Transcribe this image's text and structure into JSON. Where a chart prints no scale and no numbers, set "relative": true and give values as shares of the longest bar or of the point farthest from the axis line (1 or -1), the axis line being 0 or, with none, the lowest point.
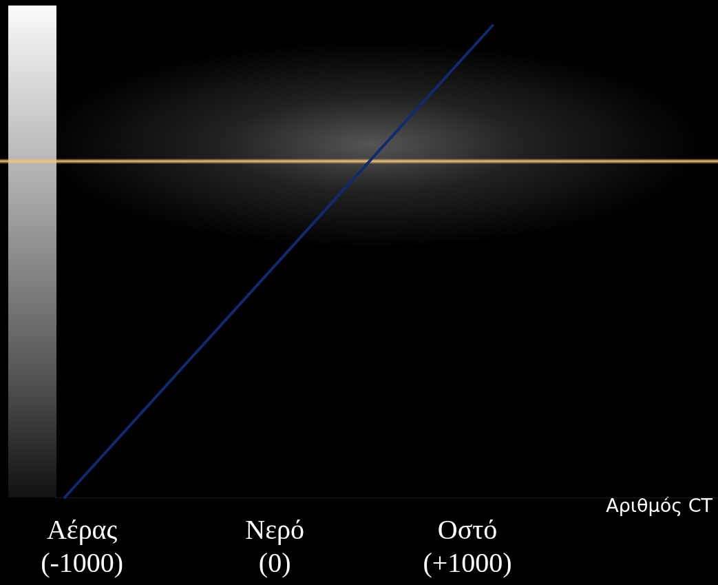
{
  "chart_data": {
    "type": "line",
    "relative": true,
    "xlabel": "Αριθμός CT",
    "x": [
      -1090,
      1130
    ],
    "series": [
      {
        "color": "#0f2a6e",
        "values": [
          0,
          1
        ]
      }
    ],
    "xlim": [
      -1140,
      2300
    ],
    "xticks": [
      {
        "value": -1000,
        "label": "Αέρας (-1000)"
      },
      {
        "value": 0,
        "label": "Νερό (0)"
      },
      {
        "value": 1000,
        "label": "Οστό (+1000)"
      }
    ],
    "grid": false,
    "marker": "none",
    "line_style": "solid"
  }
}
